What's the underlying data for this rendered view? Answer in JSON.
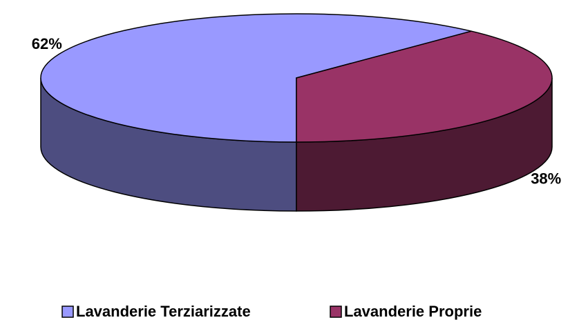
{
  "chart_data": {
    "type": "pie",
    "categories": [
      "Lavanderie Terziarizzate",
      "Lavanderie Proprie"
    ],
    "values": [
      62,
      38
    ],
    "value_labels": [
      "62%",
      "38%"
    ],
    "colors": [
      "#9999ff",
      "#993366"
    ]
  }
}
